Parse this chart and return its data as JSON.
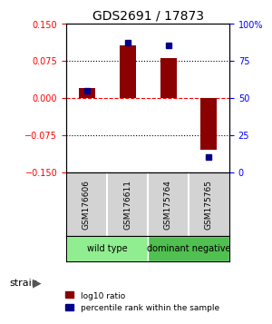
{
  "title": "GDS2691 / 17873",
  "samples": [
    "GSM176606",
    "GSM176611",
    "GSM175764",
    "GSM175765"
  ],
  "log10_ratio": [
    0.02,
    0.105,
    0.08,
    -0.105
  ],
  "percentile_rank": [
    55,
    87,
    85,
    10
  ],
  "groups": [
    {
      "label": "wild type",
      "samples": [
        0,
        1
      ],
      "color": "#90EE90"
    },
    {
      "label": "dominant negative",
      "samples": [
        2,
        3
      ],
      "color": "#50C050"
    }
  ],
  "bar_color": "#8B0000",
  "dot_color": "#00008B",
  "ylim": [
    -0.15,
    0.15
  ],
  "yticks_left": [
    -0.15,
    -0.075,
    0,
    0.075,
    0.15
  ],
  "yticks_right": [
    0,
    25,
    50,
    75,
    100
  ],
  "hline_positions": [
    -0.075,
    0,
    0.075
  ],
  "xlabel": "strain",
  "legend_red": "log10 ratio",
  "legend_blue": "percentile rank within the sample",
  "background_color": "#ffffff",
  "plot_bg": "#ffffff"
}
